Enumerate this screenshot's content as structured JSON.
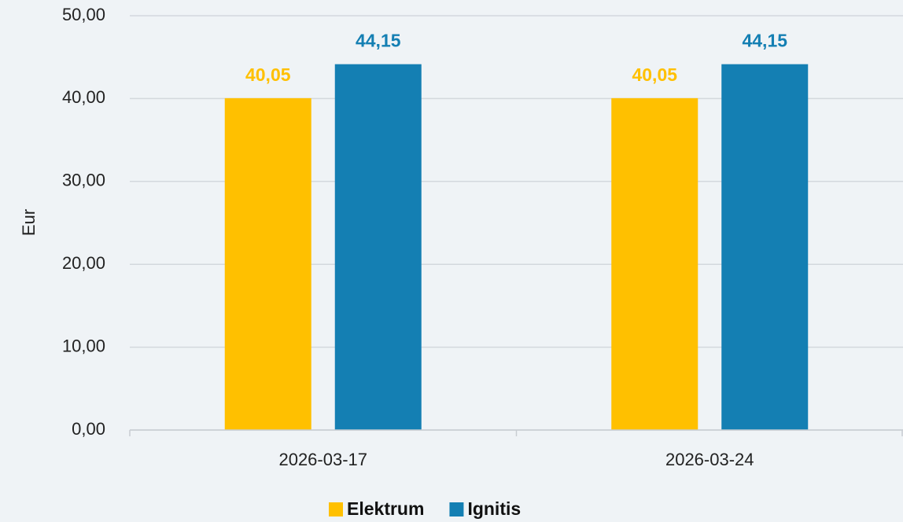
{
  "chart_data": {
    "type": "bar",
    "categories": [
      "2026-03-17",
      "2026-03-24"
    ],
    "series": [
      {
        "name": "Elektrum",
        "color": "#ffc000",
        "values": [
          40.05,
          40.05
        ],
        "value_labels": [
          "40,05",
          "40,05"
        ]
      },
      {
        "name": "Ignitis",
        "color": "#147fb3",
        "values": [
          44.15,
          44.15
        ],
        "value_labels": [
          "44,15",
          "44,15"
        ]
      }
    ],
    "ylabel": "Eur",
    "ylim": [
      0,
      50
    ],
    "yticks": [
      {
        "value": 0,
        "label": "0,00"
      },
      {
        "value": 10,
        "label": "10,00"
      },
      {
        "value": 20,
        "label": "20,00"
      },
      {
        "value": 30,
        "label": "30,00"
      },
      {
        "value": 40,
        "label": "40,00"
      },
      {
        "value": 50,
        "label": "50,00"
      }
    ],
    "grid": true,
    "legend": "bottom"
  }
}
